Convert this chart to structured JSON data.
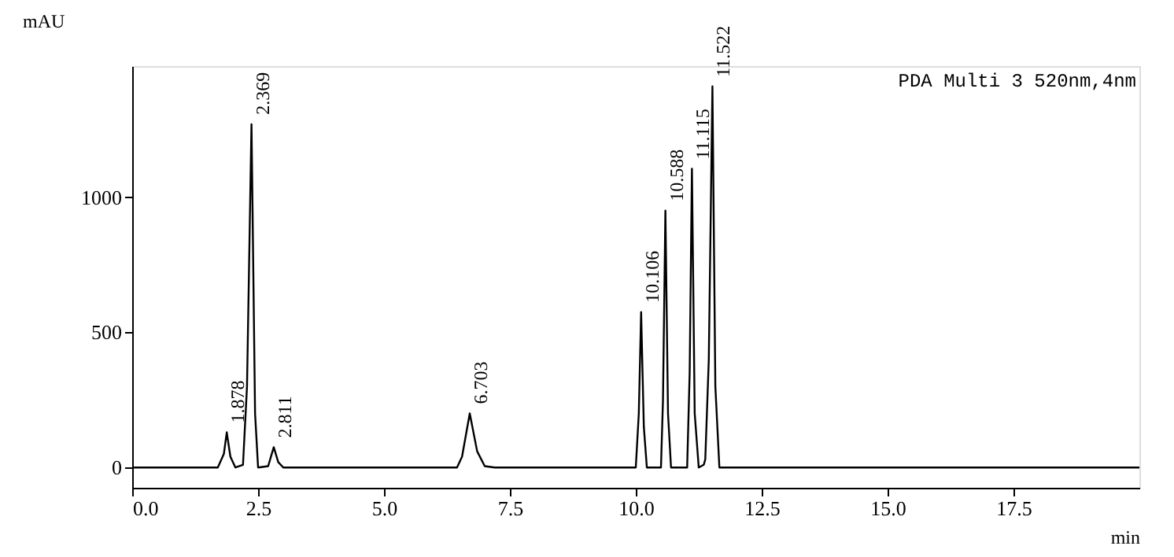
{
  "chart_data": {
    "type": "line",
    "xlabel": "min",
    "ylabel": "mAU",
    "x": [
      0,
      1.7,
      1.82,
      1.878,
      1.95,
      2.05,
      2.2,
      2.28,
      2.369,
      2.44,
      2.5,
      2.7,
      2.811,
      2.9,
      3.0,
      6.45,
      6.55,
      6.703,
      6.85,
      7.0,
      7.2,
      10.0,
      10.06,
      10.106,
      10.16,
      10.22,
      10.5,
      10.54,
      10.588,
      10.64,
      10.7,
      11.02,
      11.07,
      11.115,
      11.17,
      11.25,
      11.35,
      11.38,
      11.45,
      11.522,
      11.58,
      11.66,
      20
    ],
    "series": [
      {
        "color": "#000000",
        "values": [
          0,
          0,
          50,
          130,
          40,
          0,
          10,
          300,
          1270,
          200,
          0,
          5,
          75,
          20,
          0,
          0,
          40,
          200,
          60,
          5,
          0,
          0,
          200,
          575,
          150,
          0,
          0,
          250,
          950,
          200,
          0,
          0,
          350,
          1105,
          200,
          0,
          10,
          30,
          400,
          1410,
          300,
          0,
          0
        ]
      }
    ],
    "xlim": [
      0,
      20
    ],
    "ylim": [
      -75,
      1485
    ],
    "xticks": [
      {
        "value": 0,
        "label": "0.0"
      },
      {
        "value": 2.5,
        "label": "2.5"
      },
      {
        "value": 5,
        "label": "5.0"
      },
      {
        "value": 7.5,
        "label": "7.5"
      },
      {
        "value": 10,
        "label": "10.0"
      },
      {
        "value": 12.5,
        "label": "12.5"
      },
      {
        "value": 15,
        "label": "15.0"
      },
      {
        "value": 17.5,
        "label": "17.5"
      }
    ],
    "yticks": [
      0,
      500,
      1000
    ],
    "grid": false,
    "marker": "none",
    "line_style": "solid",
    "annotations": [
      "PDA Multi 3 520nm,4nm",
      {
        "text": "1.878",
        "x": 1.878,
        "y": 130
      },
      {
        "text": "2.369",
        "x": 2.369,
        "y": 1270
      },
      {
        "text": "2.811",
        "x": 2.811,
        "y": 75
      },
      {
        "text": "6.703",
        "x": 6.703,
        "y": 200
      },
      {
        "text": "10.106",
        "x": 10.106,
        "y": 575
      },
      {
        "text": "10.588",
        "x": 10.588,
        "y": 950
      },
      {
        "text": "11.115",
        "x": 11.115,
        "y": 1105
      },
      {
        "text": "11.522",
        "x": 11.522,
        "y": 1410
      }
    ]
  }
}
